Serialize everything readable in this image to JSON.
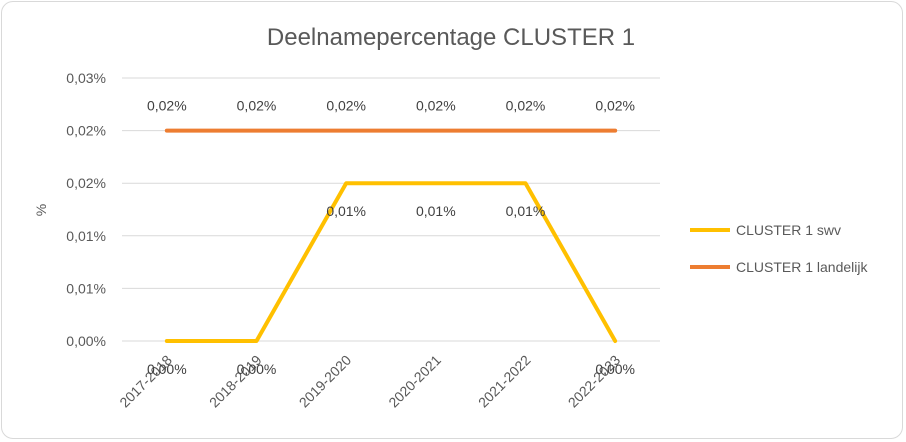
{
  "chart_data": {
    "type": "line",
    "title": "Deelnamepercentage CLUSTER 1",
    "ylabel": "%",
    "xlabel": "",
    "categories": [
      "2017-2018",
      "2018-2019",
      "2019-2020",
      "2020-2021",
      "2021-2022",
      "2022-2023"
    ],
    "y_tick_labels": [
      "0,00%",
      "0,01%",
      "0,01%",
      "0,02%",
      "0,02%",
      "0,03%"
    ],
    "ylim": [
      0,
      0.025
    ],
    "grid": true,
    "legend_position": "right",
    "series": [
      {
        "name": "CLUSTER 1 swv",
        "color": "#ffc000",
        "values": [
          0,
          0,
          0.015,
          0.015,
          0.015,
          0
        ],
        "data_labels": [
          "0,00%",
          "0,00%",
          "0,01%",
          "0,01%",
          "0,01%",
          "0,00%"
        ]
      },
      {
        "name": "CLUSTER 1 landelijk",
        "color": "#ed7d31",
        "values": [
          0.02,
          0.02,
          0.02,
          0.02,
          0.02,
          0.02
        ],
        "data_labels": [
          "0,02%",
          "0,02%",
          "0,02%",
          "0,02%",
          "0,02%",
          "0,02%"
        ]
      }
    ]
  }
}
